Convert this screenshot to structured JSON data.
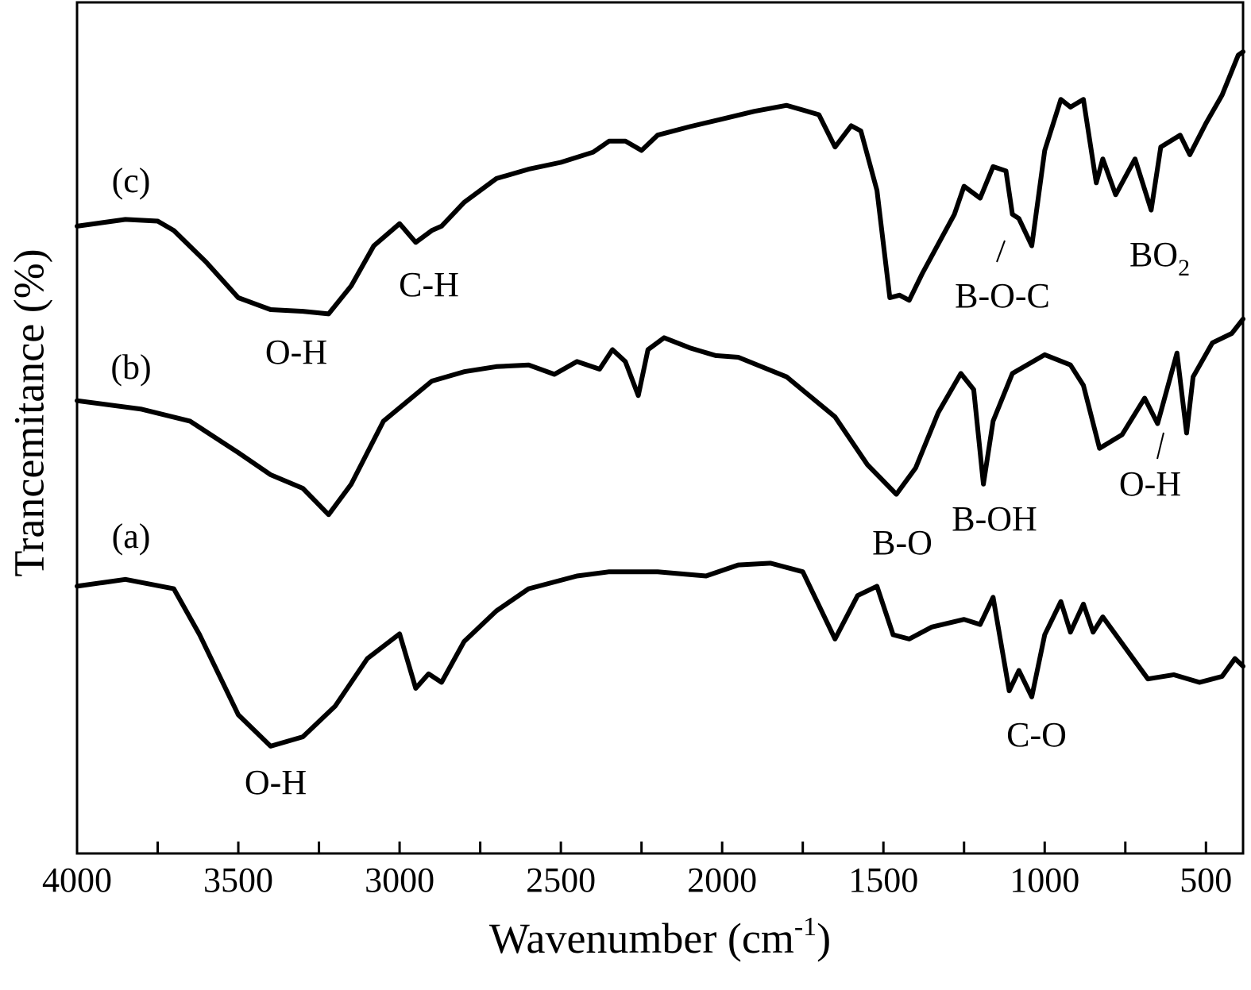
{
  "chart_data": {
    "type": "line",
    "xlabel": [
      "Wavenumber (cm",
      "-1",
      ")"
    ],
    "ylabel": "Trancemitance (%)",
    "xlim": [
      4000,
      385
    ],
    "ylim": [
      0,
      100
    ],
    "xticks": [
      4000,
      3500,
      3000,
      2500,
      2000,
      1500,
      1000,
      500
    ],
    "xminorticks": [
      3750,
      3250,
      2750,
      2250,
      1750,
      1250,
      750
    ],
    "series": [
      {
        "name": "(c)",
        "color": "#000000",
        "x": [
          4000,
          3850,
          3750,
          3700,
          3600,
          3500,
          3400,
          3300,
          3220,
          3150,
          3080,
          3000,
          2950,
          2900,
          2870,
          2800,
          2700,
          2600,
          2500,
          2400,
          2350,
          2300,
          2250,
          2200,
          2100,
          2000,
          1900,
          1800,
          1700,
          1650,
          1600,
          1570,
          1520,
          1480,
          1450,
          1420,
          1380,
          1320,
          1280,
          1250,
          1200,
          1160,
          1120,
          1100,
          1080,
          1040,
          1000,
          950,
          920,
          880,
          840,
          820,
          780,
          720,
          670,
          640,
          580,
          550,
          500,
          450,
          400,
          385
        ],
        "values": [
          73.7,
          74.5,
          74.3,
          73.2,
          69.5,
          65.3,
          63.9,
          63.7,
          63.4,
          66.7,
          71.4,
          74.0,
          71.8,
          73.2,
          73.7,
          76.5,
          79.3,
          80.4,
          81.2,
          82.4,
          83.7,
          83.7,
          82.6,
          84.4,
          85.4,
          86.3,
          87.2,
          87.9,
          86.8,
          83.0,
          85.5,
          84.9,
          77.9,
          65.3,
          65.6,
          65.0,
          68.1,
          72.3,
          75.1,
          78.4,
          77.0,
          80.7,
          80.2,
          75.1,
          74.6,
          71.4,
          82.6,
          88.6,
          87.7,
          88.6,
          78.8,
          81.6,
          77.4,
          81.6,
          75.6,
          83.0,
          84.4,
          82.1,
          85.8,
          89.1,
          93.8,
          94.2
        ]
      },
      {
        "name": "(b)",
        "color": "#000000",
        "x": [
          4000,
          3800,
          3650,
          3500,
          3400,
          3300,
          3220,
          3150,
          3050,
          2900,
          2800,
          2700,
          2600,
          2520,
          2450,
          2380,
          2340,
          2300,
          2260,
          2230,
          2180,
          2100,
          2020,
          1950,
          1800,
          1650,
          1550,
          1460,
          1400,
          1330,
          1260,
          1220,
          1190,
          1160,
          1100,
          1000,
          920,
          880,
          830,
          760,
          690,
          650,
          590,
          560,
          540,
          480,
          420,
          385
        ],
        "values": [
          53.2,
          52.2,
          50.8,
          47.1,
          44.5,
          42.9,
          39.8,
          43.4,
          50.8,
          55.5,
          56.6,
          57.2,
          57.4,
          56.3,
          57.8,
          56.9,
          59.2,
          57.8,
          53.8,
          59.2,
          60.6,
          59.4,
          58.5,
          58.3,
          56.0,
          51.3,
          45.7,
          42.2,
          45.3,
          51.8,
          56.4,
          54.5,
          43.4,
          50.8,
          56.4,
          58.6,
          57.4,
          55.0,
          47.6,
          49.2,
          53.5,
          50.5,
          58.8,
          49.4,
          56.0,
          60.0,
          61.1,
          62.8
        ]
      },
      {
        "name": "(a)",
        "color": "#000000",
        "x": [
          4000,
          3850,
          3700,
          3620,
          3500,
          3400,
          3300,
          3200,
          3100,
          3000,
          2950,
          2910,
          2870,
          2800,
          2700,
          2600,
          2450,
          2350,
          2200,
          2050,
          1950,
          1850,
          1750,
          1650,
          1580,
          1520,
          1470,
          1420,
          1350,
          1250,
          1200,
          1160,
          1110,
          1080,
          1040,
          1000,
          950,
          920,
          880,
          850,
          820,
          680,
          600,
          520,
          450,
          410,
          385
        ],
        "values": [
          31.4,
          32.2,
          31.1,
          25.7,
          16.3,
          12.6,
          13.7,
          17.3,
          22.9,
          25.8,
          19.4,
          21.1,
          20.1,
          24.9,
          28.5,
          31.1,
          32.6,
          33.1,
          33.1,
          32.6,
          33.9,
          34.1,
          33.1,
          25.2,
          30.3,
          31.4,
          25.7,
          25.2,
          26.6,
          27.5,
          26.9,
          30.1,
          19.1,
          21.5,
          18.4,
          25.7,
          29.6,
          26.0,
          29.3,
          26.0,
          27.8,
          20.5,
          21.0,
          20.1,
          20.8,
          22.9,
          22.0
        ]
      }
    ],
    "annotations": [
      {
        "text": "O-H"
      },
      {
        "text": "C-H"
      },
      {
        "text": "B-O-C"
      },
      {
        "text": "BO",
        "sub": "2"
      },
      {
        "text": "B-O"
      },
      {
        "text": "B-OH"
      },
      {
        "text": "O-H"
      },
      {
        "text": "O-H"
      },
      {
        "text": "C-O"
      }
    ]
  }
}
